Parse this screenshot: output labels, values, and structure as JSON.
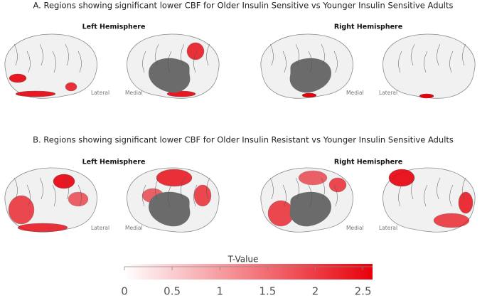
{
  "panels": [
    {
      "title": "A. Regions showing significant lower CBF for Older Insulin Sensitive vs Younger Insulin Sensitive Adults",
      "hemispheres": [
        "Left Hemisphere",
        "Right Hemisphere"
      ],
      "views": [
        "Lateral",
        "Medial",
        "Medial",
        "Lateral"
      ]
    },
    {
      "title": "B. Regions showing significant lower CBF for Older Insulin Resistant vs Younger Insulin Sensitive Adults",
      "hemispheres": [
        "Left Hemisphere",
        "Right Hemisphere"
      ],
      "views": [
        "Lateral",
        "Medial",
        "Medial",
        "Lateral"
      ]
    }
  ],
  "colorbar": {
    "title": "T-Value",
    "lim": [
      0,
      2.6
    ],
    "ticks": [
      0,
      0.5,
      1,
      1.5,
      2,
      2.5
    ],
    "colors": [
      "#ffffff",
      "#e8000b"
    ]
  }
}
